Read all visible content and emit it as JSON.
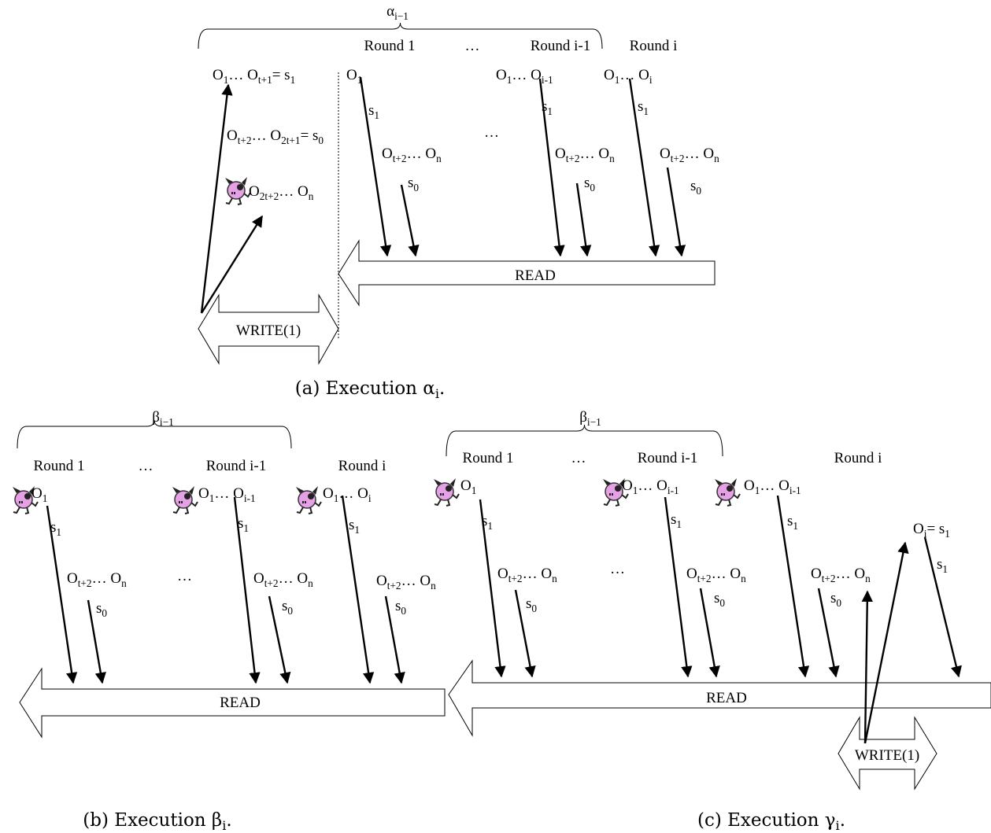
{
  "panel_a": {
    "brace_label": [
      "α",
      "i−1"
    ],
    "rounds": [
      "Round 1",
      "…",
      "Round i-1",
      "Round i"
    ],
    "labels": [
      [
        "O",
        "1",
        "… O",
        "t+1",
        "= s",
        "1"
      ],
      [
        "O",
        "1"
      ],
      [
        "O",
        "1",
        "… O",
        "i-1"
      ],
      [
        "O",
        "1",
        "… O",
        "i"
      ],
      [
        "s",
        "1"
      ],
      [
        "s",
        "1"
      ],
      [
        "s",
        "1"
      ],
      [
        "O",
        "t+2",
        "… O",
        "2t+1",
        "= s",
        "0"
      ],
      "…",
      [
        "O",
        "t+2",
        "… O",
        "n"
      ],
      [
        "O",
        "t+2",
        "… O",
        "n"
      ],
      [
        "O",
        "t+2",
        "… O",
        "n"
      ],
      [
        "s",
        "0"
      ],
      [
        "s",
        "0"
      ],
      [
        "s",
        "0"
      ],
      [
        "O",
        "2t+2",
        "… O",
        "n"
      ]
    ],
    "read": "READ",
    "write": "WRITE(1)",
    "caption": [
      "(a) Execution α",
      "i",
      "."
    ]
  },
  "panel_b": {
    "brace_label": [
      "β",
      "i−1"
    ],
    "rounds": [
      "Round 1",
      "…",
      "Round i-1",
      "Round i"
    ],
    "labels": [
      [
        "O",
        "1"
      ],
      [
        "O",
        "1",
        "… O",
        "i-1"
      ],
      [
        "O",
        "1",
        "… O",
        "i"
      ],
      [
        "s",
        "1"
      ],
      [
        "s",
        "1"
      ],
      [
        "s",
        "1"
      ],
      [
        "O",
        "t+2",
        "… O",
        "n"
      ],
      "…",
      [
        "O",
        "t+2",
        "… O",
        "n"
      ],
      [
        "O",
        "t+2",
        "… O",
        "n"
      ],
      [
        "s",
        "0"
      ],
      [
        "s",
        "0"
      ],
      [
        "s",
        "0"
      ]
    ],
    "read": "READ",
    "caption": [
      "(b) Execution β",
      "i",
      "."
    ]
  },
  "panel_c": {
    "brace_label": [
      "β",
      "i−1"
    ],
    "rounds": [
      "Round 1",
      "…",
      "Round i-1",
      "Round i"
    ],
    "labels": [
      [
        "O",
        "1"
      ],
      [
        "O",
        "1",
        "… O",
        "i-1"
      ],
      [
        "O",
        "1",
        "… O",
        "i-1"
      ],
      [
        "s",
        "1"
      ],
      [
        "s",
        "1"
      ],
      [
        "s",
        "1"
      ],
      [
        "O",
        "i",
        "= s",
        "1"
      ],
      [
        "s",
        "1"
      ],
      [
        "O",
        "t+2",
        "… O",
        "n"
      ],
      "…",
      [
        "O",
        "t+2",
        "… O",
        "n"
      ],
      [
        "O",
        "t+2",
        "… O",
        "n"
      ],
      [
        "s",
        "0"
      ],
      [
        "s",
        "0"
      ],
      [
        "s",
        "0"
      ]
    ],
    "read": "READ",
    "write": "WRITE(1)",
    "caption": [
      "(c) Execution γ",
      "i",
      "."
    ]
  }
}
